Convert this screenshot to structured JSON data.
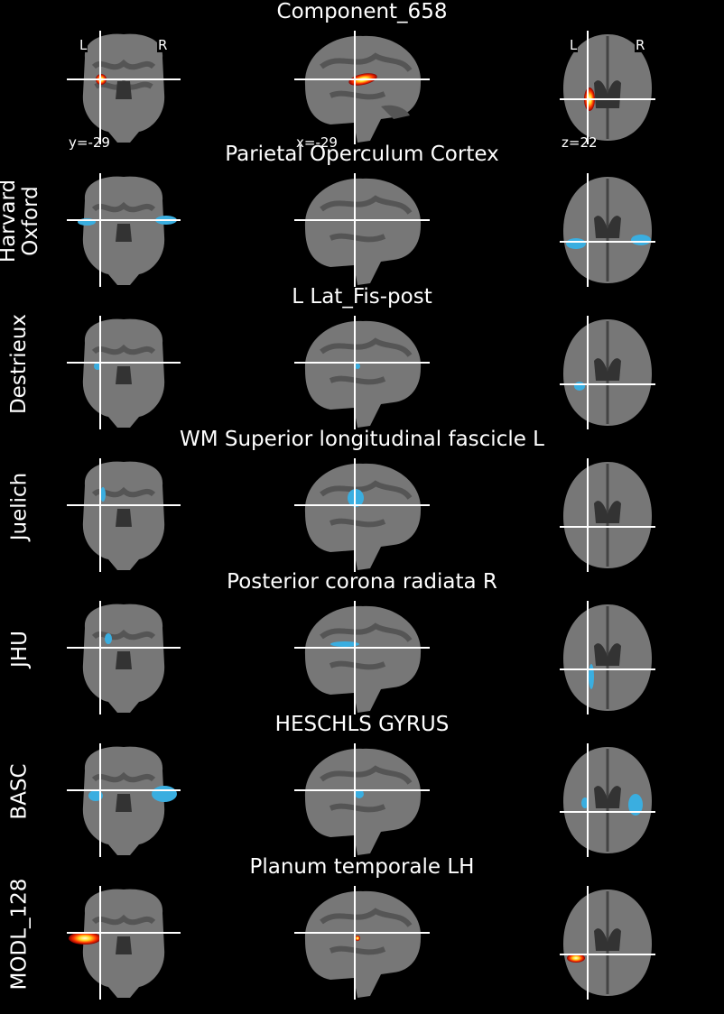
{
  "figure": {
    "colors": {
      "background": "#000000",
      "atlas_overlay": "#3aaee0",
      "component_hot": [
        "#8b0000",
        "#ff2200",
        "#ffcc00",
        "#ffffe0"
      ],
      "crosshair": "#ffffff"
    },
    "cut_coords": {
      "coronal": "y=-29",
      "sagittal": "x=-29",
      "axial": "z=22"
    },
    "orientation": {
      "left": "L",
      "right": "R"
    },
    "rows": [
      {
        "title": "Component_658",
        "atlas": "",
        "overlay": "hot"
      },
      {
        "title": "Parietal Operculum Cortex",
        "atlas": "Harvard\nOxford",
        "overlay": "blue"
      },
      {
        "title": "L Lat_Fis-post",
        "atlas": "Destrieux",
        "overlay": "blue"
      },
      {
        "title": "WM Superior longitudinal fascicle L",
        "atlas": "Juelich",
        "overlay": "blue"
      },
      {
        "title": "Posterior corona radiata R",
        "atlas": "JHU",
        "overlay": "blue"
      },
      {
        "title": "HESCHLS GYRUS",
        "atlas": "BASC",
        "overlay": "blue"
      },
      {
        "title": "Planum temporale LH",
        "atlas": "MODL_128",
        "overlay": "hot"
      }
    ]
  }
}
